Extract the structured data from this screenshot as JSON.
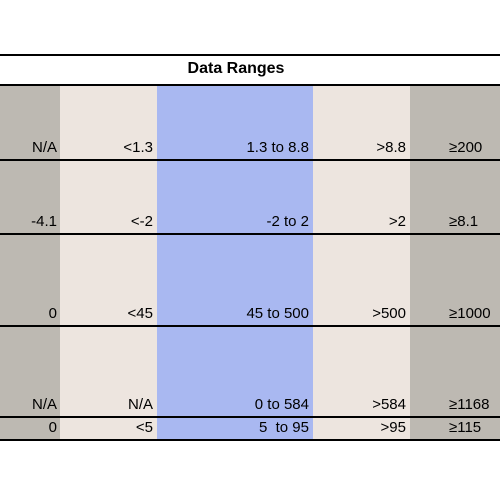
{
  "title": "Data Ranges",
  "rows": [
    [
      "N/A",
      "<1.3",
      "1.3 to 8.8",
      ">8.8",
      "≥200"
    ],
    [
      "-4.1",
      "<-2",
      "-2 to 2",
      ">2",
      "≥8.1"
    ],
    [
      "0",
      "<45",
      "45 to 500",
      ">500",
      "≥1000"
    ],
    [
      "N/A",
      "N/A",
      "0 to 584",
      ">584",
      "≥1168"
    ],
    [
      "0",
      "<5",
      "5  to 95",
      ">95",
      "≥115"
    ]
  ]
}
